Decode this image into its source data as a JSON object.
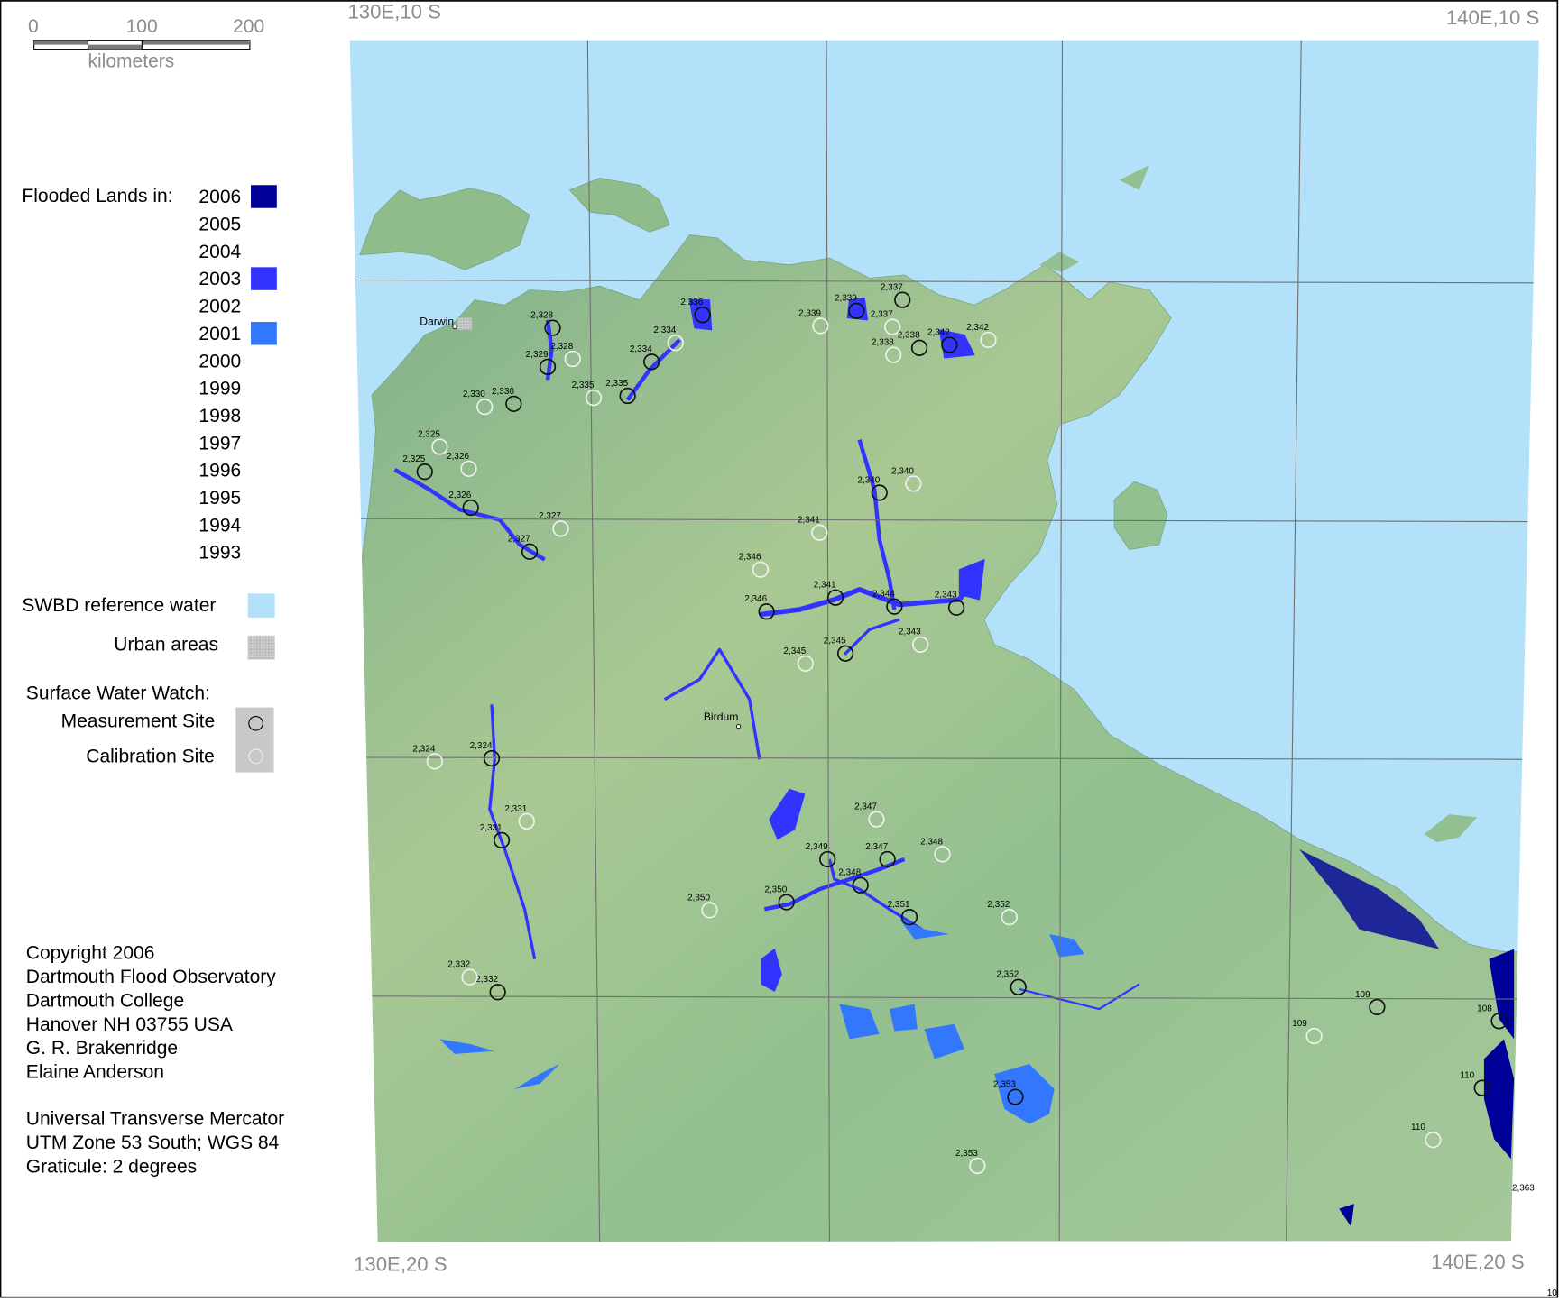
{
  "scale_bar": {
    "ticks": [
      "0",
      "100",
      "200"
    ],
    "unit": "kilometers"
  },
  "legend": {
    "flooded_title": "Flooded Lands in:",
    "years": [
      {
        "year": "2006",
        "color": "#000099"
      },
      {
        "year": "2005",
        "color": null
      },
      {
        "year": "2004",
        "color": null
      },
      {
        "year": "2003",
        "color": "#3333ff"
      },
      {
        "year": "2002",
        "color": null
      },
      {
        "year": "2001",
        "color": "#3377ff"
      },
      {
        "year": "2000",
        "color": null
      },
      {
        "year": "1999",
        "color": null
      },
      {
        "year": "1998",
        "color": null
      },
      {
        "year": "1997",
        "color": null
      },
      {
        "year": "1996",
        "color": null
      },
      {
        "year": "1995",
        "color": null
      },
      {
        "year": "1994",
        "color": null
      },
      {
        "year": "1993",
        "color": null
      }
    ],
    "swbd": {
      "label": "SWBD reference water",
      "color": "#b3e1fa"
    },
    "urban": {
      "label": "Urban areas",
      "color": "#c8c8c8"
    },
    "sww_title": "Surface Water Watch:",
    "measurement": "Measurement Site",
    "calibration": "Calibration Site"
  },
  "credits": [
    "Copyright 2006",
    "Dartmouth Flood Observatory",
    "Dartmouth College",
    "Hanover NH 03755 USA",
    "G. R. Brakenridge",
    "Elaine Anderson"
  ],
  "projection": [
    "Universal Transverse Mercator",
    "UTM Zone 53 South; WGS 84",
    "Graticule:  2 degrees"
  ],
  "corners": {
    "top_left": "130E,10 S",
    "top_right": "140E,10 S",
    "bottom_left": "130E,20 S",
    "bottom_right": "140E,20 S"
  },
  "page_number": "10",
  "towns": [
    "Darwin",
    "Birdum"
  ],
  "measurement_sites": [
    "2,328",
    "2,329",
    "2,330",
    "2,325",
    "2,326",
    "2,327",
    "2,334",
    "2,335",
    "2,336",
    "2,339",
    "2,337",
    "2,338",
    "2,342",
    "2,340",
    "2,341",
    "2,344",
    "2,343",
    "2,346",
    "2,345",
    "2,324",
    "2,331",
    "2,332",
    "2,349",
    "2,347",
    "2,348",
    "2,350",
    "2,351",
    "2,352",
    "2,353",
    "109",
    "108",
    "110"
  ],
  "calibration_sites": [
    "2,328",
    "2,334",
    "2,335",
    "2,330",
    "2,325",
    "2,326",
    "2,327",
    "2,339",
    "2,337",
    "2,338",
    "2,342",
    "2,340",
    "2,341",
    "2,346",
    "2,343",
    "2,345",
    "2,324",
    "2,331",
    "2,332",
    "2,347",
    "2,348",
    "2,350",
    "2,352",
    "2,353",
    "109",
    "110"
  ],
  "other_labels": [
    "2,363"
  ],
  "colors": {
    "sea": "#b3e1fa",
    "land": "#8fbf8f",
    "flood_2006": "#000099",
    "flood_2003": "#3333ff",
    "flood_2001": "#3377ff",
    "graticule": "#707070"
  }
}
